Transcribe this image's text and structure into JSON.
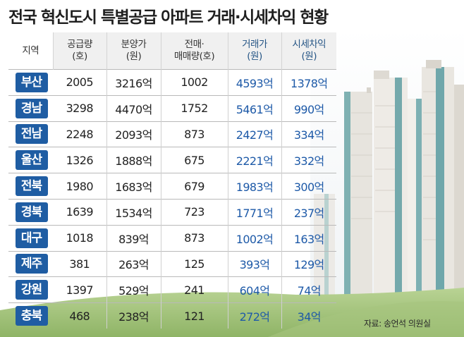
{
  "title": "전국 혁신도시 특별공급 아파트 거래·시세차익 현황",
  "source": "자료: 송언석 의원실",
  "colors": {
    "badge": "#1f5da3",
    "highlight_text": "#1e5aa8",
    "header_bg": "#f0f0f0",
    "grass": "#9cbf76",
    "building": "#e9e6e0",
    "glass": "#7aaeb0"
  },
  "chart_data": {
    "type": "table",
    "title": "전국 혁신도시 특별공급 아파트 거래·시세차익 현황",
    "columns": [
      {
        "key": "region",
        "label": "지역"
      },
      {
        "key": "supply",
        "label_line1": "공급량",
        "label_line2": "(호)"
      },
      {
        "key": "sale_price",
        "label_line1": "분양가",
        "label_line2": "(원)"
      },
      {
        "key": "resale",
        "label_line1": "전매·",
        "label_line2": "매매량(호)"
      },
      {
        "key": "trade_price",
        "label_line1": "거래가",
        "label_line2": "(원)"
      },
      {
        "key": "gain",
        "label_line1": "시세차익",
        "label_line2": "(원)"
      }
    ],
    "rows": [
      {
        "region": "부산",
        "supply": "2005",
        "sale_price": "3216억",
        "resale": "1002",
        "trade_price": "4593억",
        "gain": "1378억"
      },
      {
        "region": "경남",
        "supply": "3298",
        "sale_price": "4470억",
        "resale": "1752",
        "trade_price": "5461억",
        "gain": "990억"
      },
      {
        "region": "전남",
        "supply": "2248",
        "sale_price": "2093억",
        "resale": "873",
        "trade_price": "2427억",
        "gain": "334억"
      },
      {
        "region": "울산",
        "supply": "1326",
        "sale_price": "1888억",
        "resale": "675",
        "trade_price": "2221억",
        "gain": "332억"
      },
      {
        "region": "전북",
        "supply": "1980",
        "sale_price": "1683억",
        "resale": "679",
        "trade_price": "1983억",
        "gain": "300억"
      },
      {
        "region": "경북",
        "supply": "1639",
        "sale_price": "1534억",
        "resale": "723",
        "trade_price": "1771억",
        "gain": "237억"
      },
      {
        "region": "대구",
        "supply": "1018",
        "sale_price": "839억",
        "resale": "873",
        "trade_price": "1002억",
        "gain": "163억"
      },
      {
        "region": "제주",
        "supply": "381",
        "sale_price": "263억",
        "resale": "125",
        "trade_price": "393억",
        "gain": "129억"
      },
      {
        "region": "강원",
        "supply": "1397",
        "sale_price": "529억",
        "resale": "241",
        "trade_price": "604억",
        "gain": "74억"
      },
      {
        "region": "충북",
        "supply": "468",
        "sale_price": "238억",
        "resale": "121",
        "trade_price": "272억",
        "gain": "34억"
      }
    ]
  }
}
